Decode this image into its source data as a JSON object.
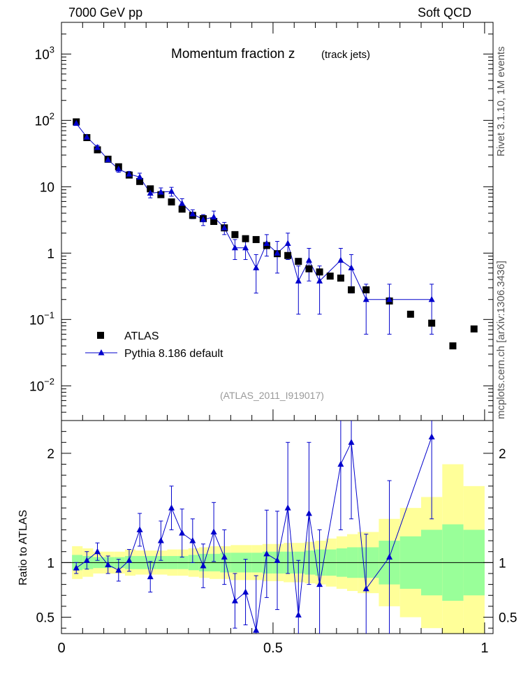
{
  "header": {
    "left": "7000 GeV pp",
    "right": "Soft QCD"
  },
  "side_labels": {
    "rivet": "Rivet 3.1.10,  1M events",
    "mcplots": "mcplots.cern.ch [arXiv:1306.3436]"
  },
  "chart_data": {
    "type": "scatter",
    "title": "Momentum fraction z",
    "subtitle": "(track jets)",
    "analysis_label": "(ATLAS_2011_I919017)",
    "main_panel": {
      "yscale": "log",
      "ylim": [
        0.003,
        3000
      ],
      "y_ticks": [
        {
          "value": 0.01,
          "label": "10",
          "exp": "−2"
        },
        {
          "value": 0.1,
          "label": "10",
          "exp": "−1"
        },
        {
          "value": 1,
          "label": "1",
          "exp": ""
        },
        {
          "value": 10,
          "label": "10",
          "exp": ""
        },
        {
          "value": 100,
          "label": "10",
          "exp": "2"
        },
        {
          "value": 1000,
          "label": "10",
          "exp": "3"
        }
      ],
      "legend_position": "bottom-left"
    },
    "ratio_panel": {
      "ylabel": "Ratio to ATLAS",
      "ylim": [
        0.35,
        2.3
      ],
      "y_ticks": [
        {
          "value": 0.5,
          "label": "0.5"
        },
        {
          "value": 1,
          "label": "1"
        },
        {
          "value": 2,
          "label": "2"
        }
      ]
    },
    "xlim": [
      0,
      1.02
    ],
    "x_ticks": [
      {
        "value": 0,
        "label": "0"
      },
      {
        "value": 0.5,
        "label": "0.5"
      },
      {
        "value": 1,
        "label": "1"
      }
    ],
    "series": [
      {
        "name": "ATLAS",
        "color": "#000000",
        "marker": "square",
        "x": [
          0.035,
          0.06,
          0.085,
          0.11,
          0.135,
          0.16,
          0.185,
          0.21,
          0.235,
          0.26,
          0.285,
          0.31,
          0.335,
          0.36,
          0.385,
          0.41,
          0.435,
          0.46,
          0.485,
          0.51,
          0.535,
          0.56,
          0.585,
          0.61,
          0.635,
          0.66,
          0.685,
          0.72,
          0.775,
          0.825,
          0.875,
          0.925,
          0.975
        ],
        "y": [
          95,
          55,
          36,
          26,
          20,
          15,
          12,
          9.3,
          7.6,
          5.9,
          4.6,
          3.7,
          3.3,
          3.0,
          2.4,
          1.9,
          1.65,
          1.6,
          1.3,
          0.98,
          0.92,
          0.75,
          0.58,
          0.52,
          0.45,
          0.42,
          0.28,
          0.28,
          0.19,
          0.12,
          0.088,
          0.04,
          0.072
        ]
      },
      {
        "name": "Pythia 8.186 default",
        "color": "#0000cc",
        "marker": "triangle",
        "x": [
          0.035,
          0.06,
          0.085,
          0.11,
          0.135,
          0.16,
          0.185,
          0.21,
          0.235,
          0.26,
          0.285,
          0.31,
          0.335,
          0.36,
          0.385,
          0.41,
          0.435,
          0.46,
          0.485,
          0.51,
          0.535,
          0.56,
          0.585,
          0.61,
          0.66,
          0.685,
          0.72,
          0.775,
          0.875
        ],
        "y": [
          90,
          56,
          39,
          25.5,
          18.5,
          15.5,
          14,
          8,
          8.3,
          8.5,
          5.6,
          3.9,
          3.2,
          3.5,
          2.4,
          1.2,
          1.2,
          0.6,
          1.4,
          1.0,
          1.4,
          0.38,
          0.78,
          0.38,
          0.78,
          0.6,
          0.2,
          0.2,
          0.2
        ],
        "err_low": [
          5,
          3,
          3,
          2,
          2,
          1.5,
          2,
          1.2,
          1.3,
          1.3,
          1,
          0.6,
          0.6,
          0.8,
          0.5,
          0.4,
          0.4,
          0.35,
          0.5,
          0.5,
          0.6,
          0.26,
          0.4,
          0.26,
          0.4,
          0.35,
          0.14,
          0.14,
          0.14
        ],
        "err_high": [
          5,
          3,
          3,
          2,
          2,
          1.5,
          2,
          1.2,
          1.3,
          1.3,
          1,
          0.6,
          0.6,
          0.8,
          0.5,
          0.4,
          0.4,
          0.35,
          0.5,
          0.5,
          0.6,
          0.26,
          0.4,
          0.26,
          0.4,
          0.35,
          0.14,
          0.14,
          0.14
        ],
        "ratio": [
          0.95,
          1.02,
          1.1,
          0.98,
          0.93,
          1.02,
          1.3,
          0.87,
          1.2,
          1.5,
          1.27,
          1.2,
          0.97,
          1.28,
          1.05,
          0.65,
          0.73,
          0.38,
          1.08,
          1.02,
          1.5,
          0.52,
          1.45,
          0.8,
          1.9,
          2.1,
          0.76,
          1.05,
          2.15
        ],
        "ratio_err_low": [
          0.05,
          0.08,
          0.08,
          0.08,
          0.1,
          0.1,
          0.15,
          0.14,
          0.18,
          0.2,
          0.22,
          0.2,
          0.2,
          0.27,
          0.25,
          0.25,
          0.3,
          0.5,
          0.4,
          0.45,
          0.6,
          0.5,
          0.65,
          0.5,
          0.6,
          0.7,
          0.5,
          0.7,
          0.75
        ],
        "ratio_err_high": [
          0.05,
          0.08,
          0.08,
          0.08,
          0.1,
          0.1,
          0.15,
          0.14,
          0.18,
          0.2,
          0.22,
          0.2,
          0.2,
          0.27,
          0.25,
          0.25,
          0.3,
          0.5,
          0.4,
          0.45,
          0.6,
          0.5,
          0.65,
          0.5,
          0.6,
          0.7,
          0.5,
          0.7,
          0.75
        ]
      }
    ],
    "uncertainty_bands": {
      "edges": [
        0.025,
        0.05,
        0.075,
        0.1,
        0.125,
        0.15,
        0.175,
        0.2,
        0.225,
        0.25,
        0.275,
        0.3,
        0.325,
        0.35,
        0.375,
        0.4,
        0.425,
        0.45,
        0.475,
        0.5,
        0.525,
        0.55,
        0.575,
        0.6,
        0.625,
        0.65,
        0.675,
        0.7,
        0.75,
        0.8,
        0.85,
        0.9,
        0.95,
        1.0
      ],
      "green_low": [
        0.93,
        0.94,
        0.95,
        0.95,
        0.95,
        0.94,
        0.94,
        0.94,
        0.94,
        0.94,
        0.94,
        0.93,
        0.92,
        0.92,
        0.91,
        0.91,
        0.91,
        0.91,
        0.9,
        0.9,
        0.9,
        0.9,
        0.89,
        0.88,
        0.88,
        0.87,
        0.86,
        0.86,
        0.8,
        0.76,
        0.7,
        0.65,
        0.7
      ],
      "green_high": [
        1.07,
        1.06,
        1.05,
        1.05,
        1.05,
        1.06,
        1.06,
        1.06,
        1.06,
        1.06,
        1.06,
        1.07,
        1.08,
        1.08,
        1.09,
        1.09,
        1.09,
        1.09,
        1.1,
        1.1,
        1.1,
        1.1,
        1.11,
        1.12,
        1.12,
        1.13,
        1.14,
        1.14,
        1.2,
        1.24,
        1.3,
        1.35,
        1.3
      ],
      "yellow_low": [
        0.85,
        0.87,
        0.9,
        0.9,
        0.9,
        0.88,
        0.89,
        0.89,
        0.89,
        0.88,
        0.88,
        0.87,
        0.86,
        0.85,
        0.85,
        0.84,
        0.84,
        0.84,
        0.83,
        0.83,
        0.82,
        0.82,
        0.81,
        0.8,
        0.78,
        0.76,
        0.74,
        0.72,
        0.6,
        0.5,
        0.4,
        0.35,
        0.35
      ],
      "yellow_high": [
        1.15,
        1.13,
        1.1,
        1.1,
        1.1,
        1.12,
        1.11,
        1.11,
        1.11,
        1.12,
        1.12,
        1.13,
        1.14,
        1.15,
        1.15,
        1.16,
        1.16,
        1.16,
        1.17,
        1.17,
        1.18,
        1.18,
        1.19,
        1.2,
        1.22,
        1.24,
        1.26,
        1.28,
        1.4,
        1.5,
        1.6,
        1.9,
        1.7
      ],
      "green_color": "#99ff99",
      "yellow_color": "#ffff99"
    }
  }
}
